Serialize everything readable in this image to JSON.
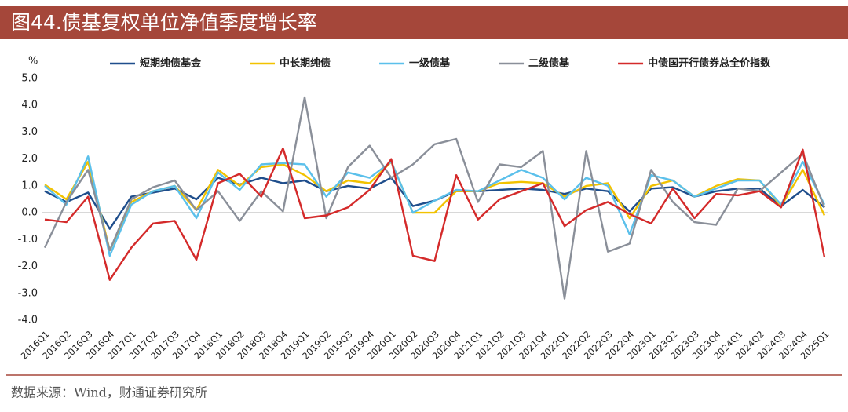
{
  "chart_data": {
    "type": "line",
    "title": "图44.债基复权单位净值季度增长率",
    "y_unit": "%",
    "source": "数据来源：Wind，财通证券研究所",
    "categories": [
      "2016Q1",
      "2016Q2",
      "2016Q3",
      "2016Q4",
      "2017Q1",
      "2017Q2",
      "2017Q3",
      "2017Q4",
      "2018Q1",
      "2018Q2",
      "2018Q3",
      "2018Q4",
      "2019Q1",
      "2019Q2",
      "2019Q3",
      "2019Q4",
      "2020Q1",
      "2020Q2",
      "2020Q3",
      "2020Q4",
      "2021Q1",
      "2021Q2",
      "2021Q3",
      "2021Q4",
      "2022Q1",
      "2022Q2",
      "2022Q3",
      "2022Q4",
      "2023Q1",
      "2023Q2",
      "2023Q3",
      "2023Q4",
      "2024Q1",
      "2024Q2",
      "2024Q3",
      "2024Q4",
      "2025Q1"
    ],
    "series": [
      {
        "name": "短期纯债基金",
        "color": "#1f4e8c",
        "values": [
          0.8,
          0.4,
          0.75,
          -0.6,
          0.6,
          0.75,
          0.9,
          0.5,
          1.3,
          1.05,
          1.3,
          1.1,
          1.2,
          0.8,
          1.0,
          0.9,
          1.3,
          0.25,
          0.45,
          0.8,
          0.8,
          0.85,
          0.9,
          0.85,
          0.7,
          0.9,
          0.8,
          0.05,
          0.9,
          0.95,
          0.6,
          0.8,
          0.9,
          0.9,
          0.25,
          0.85,
          0.2
        ]
      },
      {
        "name": "中长期纯债",
        "color": "#f2c200",
        "values": [
          1.05,
          0.5,
          1.9,
          -1.4,
          0.4,
          0.8,
          1.0,
          0.1,
          1.6,
          1.0,
          1.7,
          1.8,
          1.4,
          0.8,
          1.2,
          1.1,
          1.9,
          0.0,
          0.0,
          0.8,
          0.8,
          1.1,
          1.15,
          1.1,
          0.6,
          1.0,
          1.1,
          -0.2,
          1.0,
          1.2,
          0.6,
          1.0,
          1.25,
          1.2,
          0.25,
          1.6,
          -0.1
        ]
      },
      {
        "name": "一级债基",
        "color": "#5bc0eb",
        "values": [
          1.0,
          0.3,
          2.1,
          -1.6,
          0.3,
          0.8,
          1.0,
          -0.2,
          1.5,
          0.85,
          1.8,
          1.85,
          1.8,
          0.6,
          1.5,
          1.3,
          1.9,
          0.0,
          0.45,
          0.85,
          0.8,
          1.2,
          1.6,
          1.3,
          0.5,
          1.3,
          1.0,
          -0.8,
          1.4,
          1.2,
          0.6,
          0.9,
          1.2,
          1.2,
          0.3,
          1.9,
          0.3
        ]
      },
      {
        "name": "二级债基",
        "color": "#8a8f99",
        "values": [
          -1.3,
          0.4,
          1.6,
          -1.4,
          0.5,
          0.95,
          1.2,
          0.1,
          0.8,
          -0.3,
          0.8,
          0.05,
          4.3,
          -0.2,
          1.7,
          2.5,
          1.3,
          1.8,
          2.55,
          2.75,
          0.4,
          1.8,
          1.7,
          2.3,
          -3.2,
          2.3,
          -1.45,
          -1.15,
          1.6,
          0.4,
          -0.35,
          -0.45,
          0.9,
          0.8,
          1.5,
          2.2,
          0.2
        ]
      },
      {
        "name": "中债国开行债券总全价指数",
        "color": "#d42a2a",
        "values": [
          -0.25,
          -0.35,
          0.6,
          -2.5,
          -1.3,
          -0.4,
          -0.3,
          -1.75,
          1.1,
          1.45,
          0.6,
          2.4,
          -0.2,
          -0.1,
          0.2,
          0.85,
          2.0,
          -1.6,
          -1.8,
          1.4,
          -0.25,
          0.5,
          0.8,
          1.1,
          -0.5,
          0.1,
          0.4,
          -0.05,
          -0.4,
          0.9,
          -0.2,
          0.7,
          0.65,
          0.8,
          0.2,
          2.35,
          -1.65
        ]
      }
    ],
    "ylim": [
      -4,
      5
    ],
    "yticks": [
      {
        "value": 5,
        "label": "5.0"
      },
      {
        "value": 4,
        "label": "4.0"
      },
      {
        "value": 3,
        "label": "3.0"
      },
      {
        "value": 2,
        "label": "2.0"
      },
      {
        "value": 1,
        "label": "1.0"
      },
      {
        "value": 0,
        "label": "0.0"
      },
      {
        "value": -1,
        "label": "-1.0"
      },
      {
        "value": -2,
        "label": "-2.0"
      },
      {
        "value": -3,
        "label": "-3.0"
      },
      {
        "value": -4,
        "label": "-4.0"
      }
    ],
    "grid": false
  }
}
